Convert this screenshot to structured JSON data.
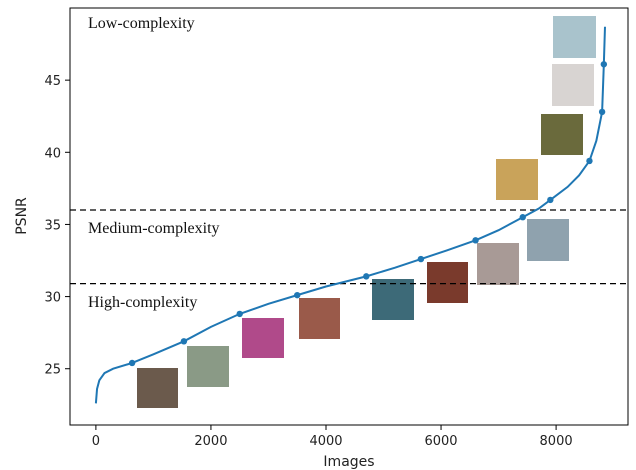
{
  "chart_data": {
    "type": "line",
    "x_label": "Images",
    "y_label": "PSNR",
    "xlim": [
      -450,
      9250
    ],
    "ylim": [
      21.1,
      50
    ],
    "xticks": [
      0,
      2000,
      4000,
      6000,
      8000
    ],
    "yticks": [
      25,
      30,
      35,
      40,
      45
    ],
    "grid": false,
    "color": "#1f77b4",
    "line": {
      "x": [
        0,
        20,
        60,
        150,
        300,
        630,
        1000,
        1530,
        2000,
        2500,
        3000,
        3500,
        4000,
        4700,
        5200,
        5650,
        6100,
        6600,
        7000,
        7420,
        7700,
        7900,
        8200,
        8400,
        8580,
        8700,
        8800,
        8830,
        8850
      ],
      "values": [
        22.6,
        23.6,
        24.2,
        24.7,
        25.0,
        25.4,
        26.0,
        26.9,
        27.9,
        28.8,
        29.5,
        30.1,
        30.7,
        31.4,
        32.0,
        32.6,
        33.2,
        33.9,
        34.6,
        35.5,
        36.1,
        36.7,
        37.6,
        38.4,
        39.4,
        40.8,
        42.8,
        46.1,
        48.7
      ]
    },
    "points": {
      "x": [
        630,
        1530,
        2500,
        3500,
        4700,
        5650,
        6600,
        7420,
        7900,
        8580,
        8800,
        8830
      ],
      "values": [
        25.4,
        26.9,
        28.8,
        30.1,
        31.4,
        32.6,
        33.9,
        35.5,
        36.7,
        39.4,
        42.8,
        46.1
      ]
    },
    "thresholds": [
      36.0,
      30.9
    ],
    "annotations": [
      "Low-complexity",
      "Medium-complexity",
      "High-complexity"
    ]
  }
}
